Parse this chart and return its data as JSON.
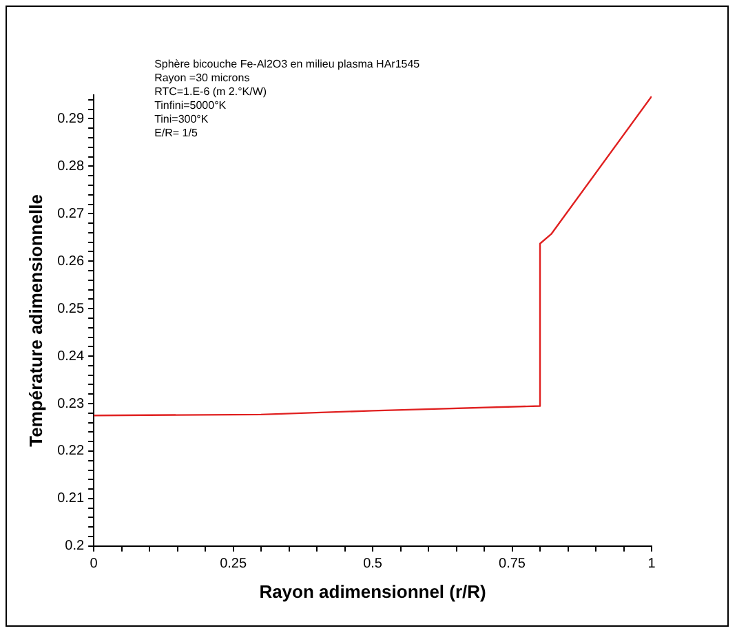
{
  "chart_data": {
    "type": "line",
    "xlabel": "Rayon adimensionnel (r/R)",
    "ylabel": "Température adimensionnelle",
    "annotations": [
      "Sphère bicouche Fe-Al2O3 en milieu plasma HAr1545",
      "Rayon =30 microns",
      "RTC=1.E-6 (m 2.°K/W)",
      "Tinfini=5000°K",
      "Tini=300°K",
      "E/R= 1/5"
    ],
    "series": [
      {
        "color": "#e02020",
        "x": [
          0,
          0.3,
          0.5,
          0.8,
          0.8,
          0.82,
          1
        ],
        "values": [
          0.2275,
          0.2277,
          0.2285,
          0.2295,
          0.2637,
          0.2657,
          0.2947
        ]
      }
    ],
    "xlim": [
      0,
      1
    ],
    "ylim": [
      0.2,
      0.295
    ],
    "xticks": [
      {
        "value": 0,
        "label": "0"
      },
      {
        "value": 0.05,
        "label": null
      },
      {
        "value": 0.1,
        "label": null
      },
      {
        "value": 0.15,
        "label": null
      },
      {
        "value": 0.2,
        "label": null
      },
      0.25,
      {
        "value": 0.3,
        "label": null
      },
      {
        "value": 0.35,
        "label": null
      },
      {
        "value": 0.4,
        "label": null
      },
      {
        "value": 0.45,
        "label": null
      },
      0.5,
      {
        "value": 0.55,
        "label": null
      },
      {
        "value": 0.6,
        "label": null
      },
      {
        "value": 0.65,
        "label": null
      },
      {
        "value": 0.7,
        "label": null
      },
      0.75,
      {
        "value": 0.8,
        "label": null
      },
      {
        "value": 0.85,
        "label": null
      },
      {
        "value": 0.9,
        "label": null
      },
      {
        "value": 0.95,
        "label": null
      },
      1
    ],
    "yticks": [
      0.2,
      {
        "value": 0.202,
        "label": null
      },
      {
        "value": 0.204,
        "label": null
      },
      {
        "value": 0.206,
        "label": null
      },
      {
        "value": 0.208,
        "label": null
      },
      0.21,
      {
        "value": 0.212,
        "label": null
      },
      {
        "value": 0.214,
        "label": null
      },
      {
        "value": 0.216,
        "label": null
      },
      {
        "value": 0.218,
        "label": null
      },
      0.22,
      {
        "value": 0.222,
        "label": null
      },
      {
        "value": 0.224,
        "label": null
      },
      {
        "value": 0.226,
        "label": null
      },
      {
        "value": 0.228,
        "label": null
      },
      0.23,
      {
        "value": 0.232,
        "label": null
      },
      {
        "value": 0.234,
        "label": null
      },
      {
        "value": 0.236,
        "label": null
      },
      {
        "value": 0.238,
        "label": null
      },
      0.24,
      {
        "value": 0.242,
        "label": null
      },
      {
        "value": 0.244,
        "label": null
      },
      {
        "value": 0.246,
        "label": null
      },
      {
        "value": 0.248,
        "label": null
      },
      0.25,
      {
        "value": 0.252,
        "label": null
      },
      {
        "value": 0.254,
        "label": null
      },
      {
        "value": 0.256,
        "label": null
      },
      {
        "value": 0.258,
        "label": null
      },
      0.26,
      {
        "value": 0.262,
        "label": null
      },
      {
        "value": 0.264,
        "label": null
      },
      {
        "value": 0.266,
        "label": null
      },
      {
        "value": 0.268,
        "label": null
      },
      0.27,
      {
        "value": 0.272,
        "label": null
      },
      {
        "value": 0.274,
        "label": null
      },
      {
        "value": 0.276,
        "label": null
      },
      {
        "value": 0.278,
        "label": null
      },
      0.28,
      {
        "value": 0.282,
        "label": null
      },
      {
        "value": 0.284,
        "label": null
      },
      {
        "value": 0.286,
        "label": null
      },
      {
        "value": 0.288,
        "label": null
      },
      0.29,
      {
        "value": 0.292,
        "label": null
      },
      {
        "value": 0.294,
        "label": null
      }
    ],
    "grid": false,
    "legend": false,
    "marker": "none",
    "line_style": "solid"
  }
}
